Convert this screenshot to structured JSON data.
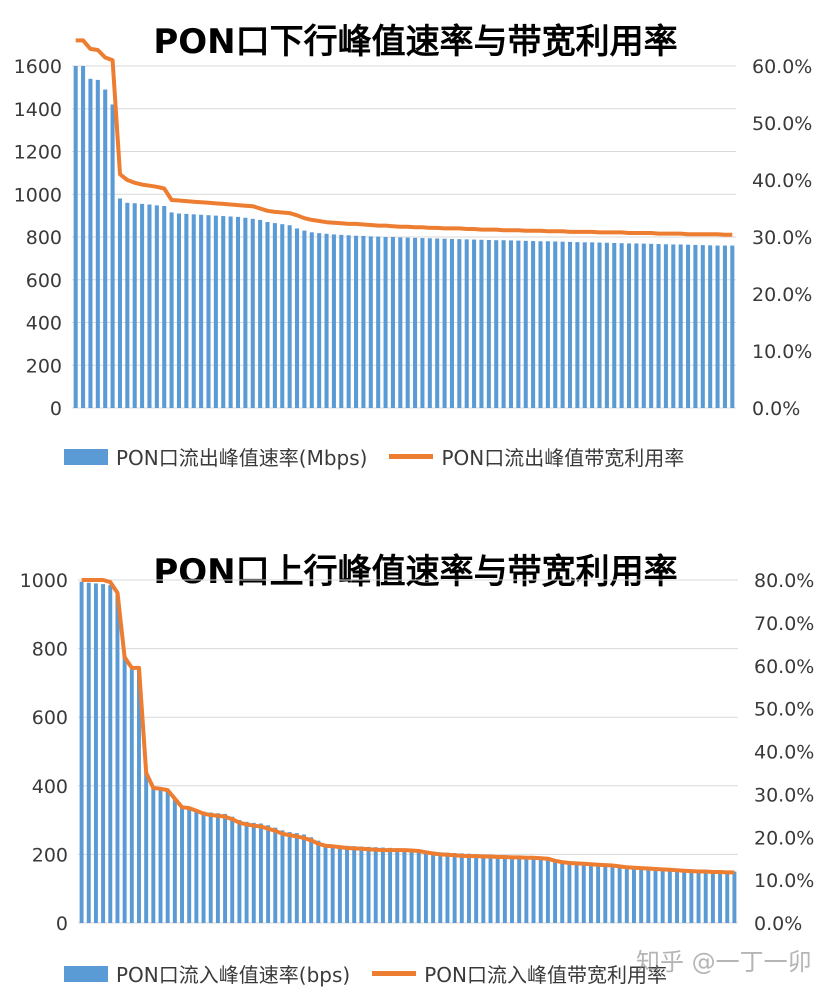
{
  "watermark": "知乎 @一丁一卯",
  "colors": {
    "bars": "#5b9bd5",
    "line": "#ed7d31",
    "grid": "#d9d9d9"
  },
  "chart_data": [
    {
      "type": "bar+line",
      "title": "PON口下行峰值速率与带宽利用率",
      "y_left": {
        "ticks": [
          "0",
          "200",
          "400",
          "600",
          "800",
          "1000",
          "1200",
          "1400",
          "1600"
        ],
        "range": [
          0,
          1600
        ]
      },
      "y_right": {
        "ticks": [
          "0.0%",
          "10.0%",
          "20.0%",
          "30.0%",
          "40.0%",
          "50.0%",
          "60.0%"
        ],
        "range": [
          0,
          60
        ]
      },
      "grid": true,
      "legend_position": "bottom",
      "series": [
        {
          "name": "PON口流出峰值速率(Mbps)",
          "kind": "bar",
          "axis": "left",
          "values": [
            1600,
            1600,
            1540,
            1535,
            1490,
            1420,
            980,
            960,
            958,
            955,
            952,
            948,
            945,
            915,
            910,
            908,
            906,
            904,
            902,
            900,
            898,
            896,
            894,
            890,
            885,
            880,
            870,
            865,
            860,
            855,
            840,
            830,
            822,
            818,
            815,
            812,
            810,
            808,
            806,
            805,
            803,
            802,
            800,
            800,
            798,
            797,
            796,
            795,
            794,
            793,
            792,
            791,
            790,
            789,
            788,
            787,
            786,
            785,
            785,
            784,
            783,
            782,
            781,
            780,
            780,
            779,
            778,
            777,
            776,
            775,
            775,
            774,
            773,
            772,
            771,
            770,
            770,
            769,
            768,
            767,
            766,
            765,
            765,
            764,
            763,
            762,
            761,
            760,
            760,
            760
          ]
        },
        {
          "name": "PON口流出峰值带宽利用率",
          "kind": "line",
          "axis": "right",
          "values": [
            64.5,
            64.5,
            63,
            62.8,
            61.5,
            61,
            41,
            40,
            39.5,
            39.2,
            39,
            38.8,
            38.5,
            36.5,
            36.4,
            36.3,
            36.2,
            36.1,
            36,
            35.9,
            35.8,
            35.7,
            35.6,
            35.5,
            35.4,
            35,
            34.6,
            34.4,
            34.3,
            34.2,
            33.8,
            33.3,
            33,
            32.8,
            32.6,
            32.5,
            32.4,
            32.3,
            32.3,
            32.2,
            32.1,
            32,
            32,
            31.9,
            31.8,
            31.8,
            31.7,
            31.7,
            31.6,
            31.6,
            31.5,
            31.5,
            31.5,
            31.4,
            31.4,
            31.3,
            31.3,
            31.3,
            31.2,
            31.2,
            31.2,
            31.1,
            31.1,
            31.1,
            31,
            31,
            31,
            30.9,
            30.9,
            30.9,
            30.9,
            30.8,
            30.8,
            30.8,
            30.8,
            30.7,
            30.7,
            30.7,
            30.7,
            30.6,
            30.6,
            30.6,
            30.6,
            30.5,
            30.5,
            30.5,
            30.5,
            30.5,
            30.4,
            30.4
          ]
        }
      ]
    },
    {
      "type": "bar+line",
      "title": "PON口上行峰值速率与带宽利用率",
      "y_left": {
        "ticks": [
          "0",
          "200",
          "400",
          "600",
          "800",
          "1000"
        ],
        "range": [
          0,
          1000
        ]
      },
      "y_right": {
        "ticks": [
          "0.0%",
          "10.0%",
          "20.0%",
          "30.0%",
          "40.0%",
          "50.0%",
          "60.0%",
          "70.0%",
          "80.0%"
        ],
        "range": [
          0,
          80
        ]
      },
      "grid": true,
      "legend_position": "bottom",
      "series": [
        {
          "name": "PON口流入峰值速率(bps)",
          "kind": "bar",
          "axis": "left",
          "values": [
            995,
            992,
            990,
            988,
            985,
            960,
            780,
            740,
            740,
            440,
            395,
            393,
            390,
            360,
            340,
            338,
            330,
            325,
            322,
            320,
            318,
            310,
            300,
            295,
            292,
            290,
            285,
            278,
            270,
            265,
            262,
            258,
            250,
            240,
            230,
            228,
            226,
            225,
            224,
            223,
            222,
            221,
            220,
            219,
            218,
            217,
            215,
            213,
            210,
            208,
            206,
            205,
            204,
            203,
            202,
            201,
            200,
            199,
            198,
            197,
            196,
            195,
            194,
            193,
            192,
            190,
            185,
            182,
            180,
            178,
            176,
            175,
            174,
            172,
            170,
            168,
            166,
            165,
            164,
            163,
            162,
            160,
            158,
            156,
            155,
            154,
            153,
            152,
            151,
            150,
            150,
            150
          ]
        },
        {
          "name": "PON口流入峰值带宽利用率",
          "kind": "line",
          "axis": "right",
          "values": [
            80,
            80,
            80,
            80,
            79.5,
            77,
            62,
            59.5,
            59.5,
            35,
            31.5,
            31.3,
            31,
            29,
            27,
            26.8,
            26.2,
            25.5,
            25.2,
            25,
            24.8,
            24.2,
            23.4,
            23,
            22.7,
            22.5,
            22,
            21.5,
            20.8,
            20.5,
            20.2,
            19.8,
            19.3,
            18.5,
            18,
            17.9,
            17.7,
            17.5,
            17.4,
            17.3,
            17.2,
            17.1,
            17,
            17,
            17,
            17,
            16.9,
            16.8,
            16.5,
            16.2,
            16,
            15.9,
            15.8,
            15.7,
            15.6,
            15.6,
            15.5,
            15.5,
            15.4,
            15.4,
            15.3,
            15.3,
            15.2,
            15.2,
            15.1,
            15,
            14.5,
            14.2,
            14,
            13.9,
            13.8,
            13.7,
            13.6,
            13.5,
            13.4,
            13.2,
            13,
            12.9,
            12.8,
            12.7,
            12.6,
            12.5,
            12.4,
            12.3,
            12.2,
            12.1,
            12,
            12,
            11.9,
            11.9,
            11.8,
            11.8
          ]
        }
      ]
    }
  ]
}
